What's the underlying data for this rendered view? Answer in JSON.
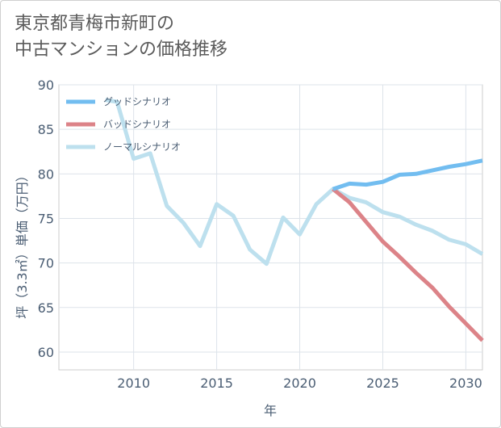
{
  "title_lines": [
    "東京都青梅市新町の",
    "中古マンションの価格推移"
  ],
  "chart_data": {
    "type": "line",
    "title": "東京都青梅市新町の中古マンションの価格推移",
    "xlabel": "年",
    "ylabel": "坪（3.3㎡）単価（万円）",
    "xlim": [
      2005.5,
      2031
    ],
    "ylim": [
      58,
      90
    ],
    "x_ticks": [
      2010,
      2015,
      2020,
      2025,
      2030
    ],
    "y_ticks": [
      60,
      65,
      70,
      75,
      80,
      85,
      90
    ],
    "grid": true,
    "legend_position": "top-left",
    "series": [
      {
        "name": "グッドシナリオ",
        "color": "#72bdf0",
        "points": [
          [
            2022,
            78.3
          ],
          [
            2023,
            78.9
          ],
          [
            2024,
            78.8
          ],
          [
            2025,
            79.1
          ],
          [
            2026,
            79.9
          ],
          [
            2027,
            80.0
          ],
          [
            2028,
            80.4
          ],
          [
            2029,
            80.8
          ],
          [
            2030,
            81.1
          ],
          [
            2031,
            81.5
          ]
        ]
      },
      {
        "name": "バッドシナリオ",
        "color": "#dc8388",
        "points": [
          [
            2022,
            78.3
          ],
          [
            2023,
            76.8
          ],
          [
            2024,
            74.6
          ],
          [
            2025,
            72.4
          ],
          [
            2026,
            70.7
          ],
          [
            2027,
            68.9
          ],
          [
            2028,
            67.2
          ],
          [
            2029,
            65.1
          ],
          [
            2030,
            63.2
          ],
          [
            2031,
            61.3
          ]
        ]
      },
      {
        "name": "ノーマルシナリオ",
        "color": "#bde0ee",
        "points": [
          [
            2008.3,
            88.3
          ],
          [
            2009,
            88.1
          ],
          [
            2010,
            81.7
          ],
          [
            2011,
            82.3
          ],
          [
            2012,
            76.4
          ],
          [
            2013,
            74.5
          ],
          [
            2014,
            71.9
          ],
          [
            2015,
            76.6
          ],
          [
            2016,
            75.3
          ],
          [
            2017,
            71.5
          ],
          [
            2018,
            69.9
          ],
          [
            2019,
            75.1
          ],
          [
            2020,
            73.2
          ],
          [
            2021,
            76.6
          ],
          [
            2022,
            78.3
          ],
          [
            2023,
            77.3
          ],
          [
            2024,
            76.8
          ],
          [
            2025,
            75.7
          ],
          [
            2026,
            75.2
          ],
          [
            2027,
            74.3
          ],
          [
            2028,
            73.6
          ],
          [
            2029,
            72.6
          ],
          [
            2030,
            72.1
          ],
          [
            2031,
            71.0
          ]
        ]
      }
    ]
  }
}
